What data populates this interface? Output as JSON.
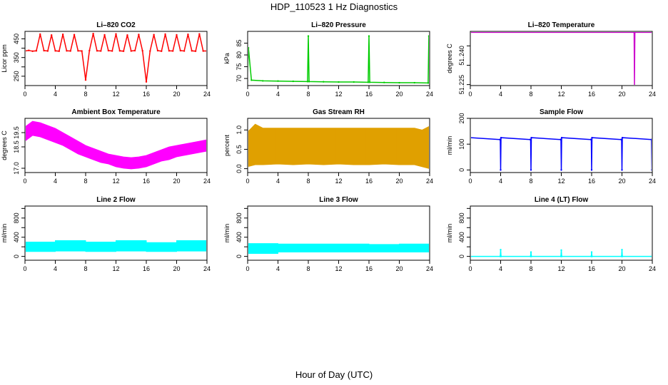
{
  "figure": {
    "title": "HDP_110523  1 Hz Diagnostics",
    "xlabel": "Hour of Day (UTC)"
  },
  "chart_data": [
    {
      "type": "line",
      "title": "Li–820 CO2",
      "ylabel": "Licor ppm",
      "color": "#ff0000",
      "xlim": [
        0,
        24
      ],
      "ylim": [
        200,
        490
      ],
      "xticks": [
        0,
        4,
        8,
        12,
        16,
        20,
        24
      ],
      "yticks": [
        250,
        300,
        350,
        400,
        450
      ],
      "yticklabels": [
        "250",
        "350",
        "450"
      ],
      "x": [
        0,
        0.5,
        1,
        1.5,
        2,
        2.5,
        3,
        3.5,
        4,
        4.5,
        5,
        5.5,
        6,
        6.5,
        7,
        7.5,
        8,
        8.5,
        9,
        9.5,
        10,
        10.5,
        11,
        11.5,
        12,
        12.5,
        13,
        13.5,
        14,
        14.5,
        15,
        15.5,
        16,
        16.5,
        17,
        17.5,
        18,
        18.5,
        19,
        19.5,
        20,
        20.5,
        21,
        21.5,
        22,
        22.5,
        23,
        23.5,
        24
      ],
      "values": [
        385,
        388,
        384,
        386,
        475,
        387,
        385,
        470,
        386,
        384,
        474,
        386,
        385,
        472,
        386,
        385,
        230,
        387,
        478,
        386,
        385,
        471,
        387,
        385,
        476,
        386,
        384,
        470,
        385,
        387,
        473,
        386,
        220,
        385,
        472,
        387,
        384,
        475,
        386,
        385,
        471,
        387,
        385,
        474,
        386,
        384,
        476,
        385,
        385
      ]
    },
    {
      "type": "line",
      "title": "Li–820 Pressure",
      "ylabel": "kPa",
      "color": "#00cc00",
      "xlim": [
        0,
        24
      ],
      "ylim": [
        67,
        90
      ],
      "xticks": [
        0,
        4,
        8,
        12,
        16,
        20,
        24
      ],
      "yticks": [
        70,
        75,
        80,
        85
      ],
      "yticklabels": [
        "70",
        "75",
        "80",
        "85"
      ],
      "x": [
        0,
        0.1,
        0.5,
        2,
        4,
        6,
        7.9,
        8,
        8.1,
        10,
        12,
        14,
        15.9,
        16,
        16.1,
        18,
        20,
        22,
        23.8,
        23.9,
        24
      ],
      "values": [
        69,
        83,
        69.3,
        69,
        68.9,
        68.8,
        68.7,
        88,
        68.7,
        68.6,
        68.5,
        68.5,
        68.4,
        88,
        68.4,
        68.3,
        68.2,
        68.2,
        68.1,
        88,
        88
      ]
    },
    {
      "type": "line",
      "title": "Li–820 Temperature",
      "ylabel": "degrees C",
      "color": "#cc00cc",
      "xlim": [
        0,
        24
      ],
      "ylim": [
        51.2245,
        51.2525
      ],
      "xticks": [
        0,
        4,
        8,
        12,
        16,
        20,
        24
      ],
      "yticks": [
        51.225,
        51.235,
        51.245
      ],
      "yticklabels": [
        "51.225",
        "51.240"
      ],
      "x": [
        0,
        21.6,
        21.65,
        21.7,
        24
      ],
      "values": [
        51.252,
        51.252,
        51.2245,
        51.252,
        51.252
      ]
    },
    {
      "type": "area",
      "title": "Ambient Box Temperature",
      "ylabel": "degrees C",
      "color": "#ff00ff",
      "xlim": [
        0,
        24
      ],
      "ylim": [
        16.7,
        20.5
      ],
      "xticks": [
        0,
        4,
        8,
        12,
        16,
        20,
        24
      ],
      "yticks": [
        17.0,
        18.5,
        19.5
      ],
      "yticklabels": [
        "17.0",
        "18.5",
        "19.5"
      ],
      "x": [
        0,
        1,
        2,
        3,
        4,
        5,
        6,
        7,
        8,
        9,
        10,
        11,
        12,
        13,
        14,
        15,
        16,
        17,
        18,
        19,
        20,
        21,
        22,
        23,
        24
      ],
      "low": [
        18.9,
        19.3,
        19.2,
        19.0,
        18.8,
        18.6,
        18.3,
        18.0,
        17.8,
        17.6,
        17.4,
        17.3,
        17.1,
        17.0,
        16.95,
        17.0,
        17.1,
        17.3,
        17.5,
        17.6,
        17.8,
        17.9,
        18.0,
        18.1,
        18.2
      ],
      "high": [
        19.9,
        20.3,
        20.2,
        20.0,
        19.8,
        19.5,
        19.2,
        18.9,
        18.6,
        18.4,
        18.2,
        18.0,
        17.9,
        17.8,
        17.75,
        17.8,
        17.9,
        18.1,
        18.3,
        18.5,
        18.6,
        18.7,
        18.8,
        18.9,
        19.0
      ]
    },
    {
      "type": "area",
      "title": "Gas Stream RH",
      "ylabel": "percent",
      "color": "#e0a000",
      "xlim": [
        0,
        24
      ],
      "ylim": [
        -0.1,
        1.3
      ],
      "xticks": [
        0,
        4,
        8,
        12,
        16,
        20,
        24
      ],
      "yticks": [
        0.0,
        0.5,
        1.0
      ],
      "yticklabels": [
        "0.0",
        "0.5",
        "1.0"
      ],
      "x": [
        0,
        1,
        2,
        4,
        6,
        8,
        10,
        12,
        14,
        16,
        18,
        20,
        22,
        23,
        24
      ],
      "low": [
        0.05,
        0.1,
        0.1,
        0.12,
        0.1,
        0.12,
        0.1,
        0.12,
        0.1,
        0.1,
        0.12,
        0.1,
        0.1,
        0.05,
        0.0
      ],
      "high": [
        0.95,
        1.15,
        1.05,
        1.05,
        1.05,
        1.05,
        1.05,
        1.05,
        1.05,
        1.05,
        1.05,
        1.05,
        1.05,
        1.0,
        1.1
      ]
    },
    {
      "type": "line",
      "title": "Sample Flow",
      "ylabel": "ml/min",
      "color": "#0000ff",
      "xlim": [
        0,
        24
      ],
      "ylim": [
        -10,
        200
      ],
      "xticks": [
        0,
        4,
        8,
        12,
        16,
        20,
        24
      ],
      "yticks": [
        0,
        100,
        200
      ],
      "yticklabels": [
        "0",
        "100",
        "200"
      ],
      "x": [
        0,
        3.9,
        3.95,
        4.0,
        4.05,
        7.9,
        7.95,
        8.0,
        8.05,
        11.9,
        11.95,
        12.0,
        12.05,
        15.9,
        15.95,
        16.0,
        16.05,
        19.9,
        19.95,
        20.0,
        20.05,
        23.9,
        23.95,
        24
      ],
      "values": [
        125,
        118,
        118,
        0,
        125,
        118,
        118,
        0,
        125,
        118,
        118,
        0,
        125,
        118,
        118,
        0,
        125,
        118,
        118,
        0,
        125,
        118,
        0,
        0
      ]
    },
    {
      "type": "area",
      "title": "Line 2 Flow",
      "ylabel": "ml/min",
      "color": "#00ffff",
      "xlim": [
        0,
        24
      ],
      "ylim": [
        -80,
        1050
      ],
      "xticks": [
        0,
        4,
        8,
        12,
        16,
        20,
        24
      ],
      "yticks": [
        0,
        200,
        400,
        600,
        800,
        1000
      ],
      "yticklabels": [
        "0",
        "400",
        "800"
      ],
      "x": [
        0,
        4,
        4,
        8,
        8,
        12,
        12,
        16,
        16,
        20,
        20,
        24
      ],
      "low": [
        100,
        100,
        110,
        110,
        100,
        100,
        110,
        110,
        100,
        100,
        110,
        110
      ],
      "high": [
        300,
        300,
        330,
        330,
        300,
        300,
        330,
        330,
        290,
        290,
        330,
        330
      ]
    },
    {
      "type": "area",
      "title": "Line 3 Flow",
      "ylabel": "ml/min",
      "color": "#00ffff",
      "xlim": [
        0,
        24
      ],
      "ylim": [
        -80,
        1050
      ],
      "xticks": [
        0,
        4,
        8,
        12,
        16,
        20,
        24
      ],
      "yticks": [
        0,
        200,
        400,
        600,
        800,
        1000
      ],
      "yticklabels": [
        "0",
        "400",
        "800"
      ],
      "x": [
        0,
        4,
        4,
        8,
        8,
        12,
        12,
        16,
        16,
        20,
        20,
        24
      ],
      "low": [
        60,
        60,
        90,
        90,
        90,
        90,
        90,
        90,
        90,
        90,
        90,
        90
      ],
      "high": [
        270,
        270,
        260,
        260,
        260,
        260,
        260,
        260,
        250,
        250,
        260,
        260
      ]
    },
    {
      "type": "line",
      "title": "Line 4 (LT) Flow",
      "ylabel": "ml/min",
      "color": "#00ffff",
      "xlim": [
        0,
        24
      ],
      "ylim": [
        -80,
        1050
      ],
      "xticks": [
        0,
        4,
        8,
        12,
        16,
        20,
        24
      ],
      "yticks": [
        0,
        200,
        400,
        600,
        800,
        1000
      ],
      "yticklabels": [
        "0",
        "400",
        "800"
      ],
      "x": [
        0,
        3.95,
        4.0,
        4.05,
        7.95,
        8.0,
        8.05,
        11.95,
        12.0,
        12.05,
        15.95,
        16.0,
        16.05,
        19.95,
        20.0,
        20.05,
        23.95,
        24.0,
        24
      ],
      "values": [
        0,
        0,
        140,
        0,
        0,
        90,
        0,
        0,
        130,
        0,
        0,
        90,
        0,
        0,
        140,
        0,
        0,
        40,
        0
      ]
    }
  ]
}
